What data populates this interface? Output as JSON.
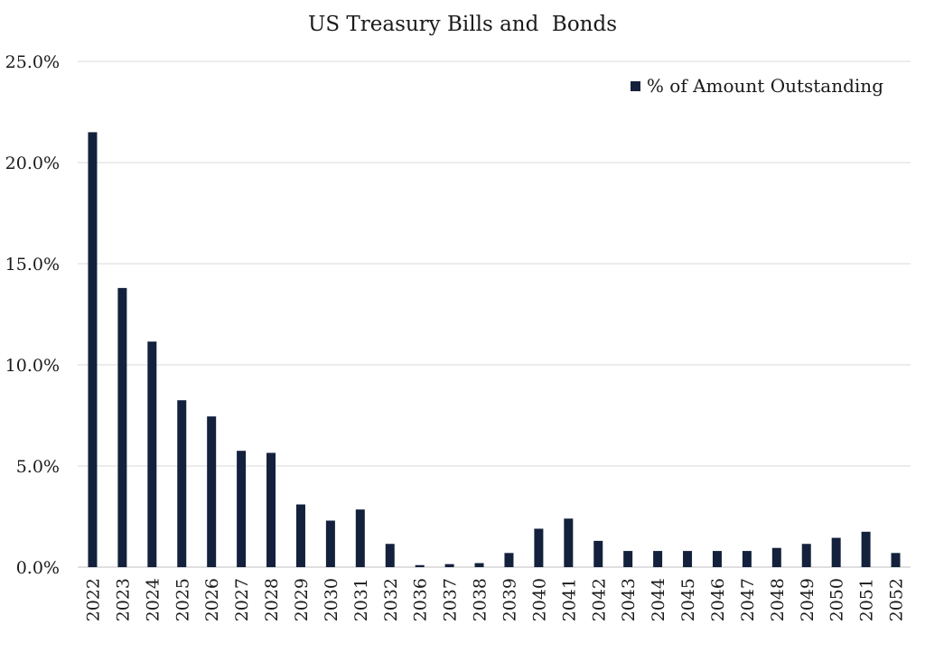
{
  "chart_data": {
    "type": "bar",
    "title": "US Treasury Bills and  Bonds",
    "xlabel": "",
    "ylabel": "",
    "categories": [
      "2022",
      "2023",
      "2024",
      "2025",
      "2026",
      "2027",
      "2028",
      "2029",
      "2030",
      "2031",
      "2032",
      "2036",
      "2037",
      "2038",
      "2039",
      "2040",
      "2041",
      "2042",
      "2043",
      "2044",
      "2045",
      "2046",
      "2047",
      "2048",
      "2049",
      "2050",
      "2051",
      "2052"
    ],
    "series": [
      {
        "name": "% of Amount Outstanding",
        "values": [
          21.5,
          13.8,
          11.15,
          8.25,
          7.45,
          5.75,
          5.65,
          3.1,
          2.3,
          2.85,
          1.15,
          0.1,
          0.15,
          0.2,
          0.7,
          1.9,
          2.4,
          1.3,
          0.8,
          0.8,
          0.8,
          0.8,
          0.8,
          0.95,
          1.15,
          1.45,
          1.75,
          0.7
        ],
        "color": "#14213d"
      }
    ],
    "ylim": [
      0,
      25
    ],
    "yticks": [
      0,
      5,
      10,
      15,
      20,
      25
    ],
    "ytick_labels": [
      "0.0%",
      "5.0%",
      "10.0%",
      "15.0%",
      "20.0%",
      "25.0%"
    ],
    "grid": true,
    "legend_position": "top-right",
    "colors": {
      "bar": "#14213d",
      "grid": "#d9d9d9",
      "axis": "#bfbfbf"
    }
  }
}
